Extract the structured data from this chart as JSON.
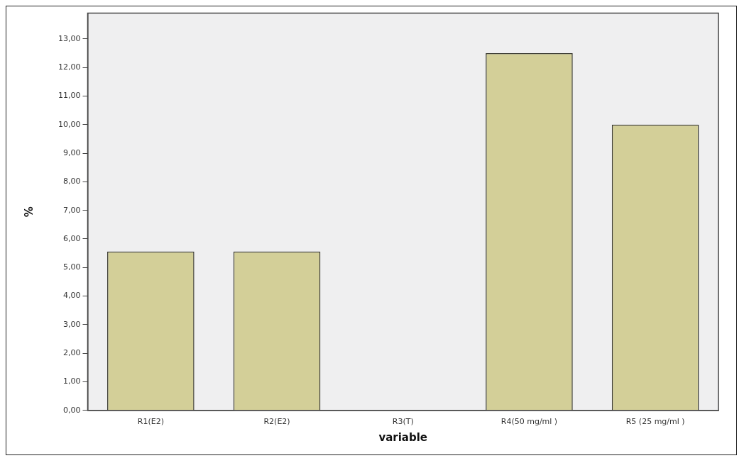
{
  "chart_data": {
    "type": "bar",
    "xlabel": "variable",
    "ylabel": "%",
    "categories": [
      "R1(E2)",
      "R2(E2)",
      "R3(T)",
      "R4(50 mg/ml )",
      "R5 (25 mg/ml )"
    ],
    "values": [
      5.56,
      5.56,
      0,
      12.5,
      10
    ],
    "color": "#d3cf98",
    "ylim": [
      0,
      13.9
    ],
    "yticks": [
      {
        "value": 0,
        "label": "0,00"
      },
      {
        "value": 1,
        "label": "1,00"
      },
      {
        "value": 2,
        "label": "2,00"
      },
      {
        "value": 3,
        "label": "3,00"
      },
      {
        "value": 4,
        "label": "4,00"
      },
      {
        "value": 5,
        "label": "5,00"
      },
      {
        "value": 6,
        "label": "6,00"
      },
      {
        "value": 7,
        "label": "7,00"
      },
      {
        "value": 8,
        "label": "8,00"
      },
      {
        "value": 9,
        "label": "9,00"
      },
      {
        "value": 10,
        "label": "10,00"
      },
      {
        "value": 11,
        "label": "11,00"
      },
      {
        "value": 12,
        "label": "12,00"
      },
      {
        "value": 13,
        "label": "13,00"
      }
    ],
    "grid": false,
    "legend": false
  }
}
